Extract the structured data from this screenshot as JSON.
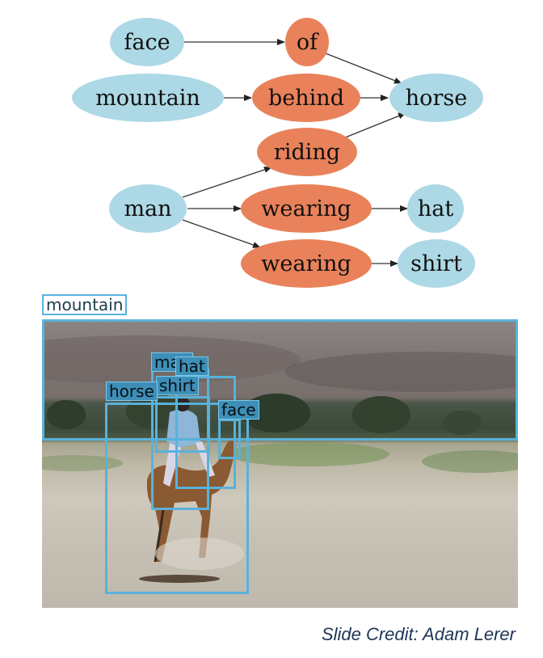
{
  "graph": {
    "nodes": {
      "face": "face",
      "of": "of",
      "mountain": "mountain",
      "behind": "behind",
      "horse": "horse",
      "riding": "riding",
      "man": "man",
      "wearing1": "wearing",
      "hat": "hat",
      "wearing2": "wearing",
      "shirt": "shirt"
    },
    "colors": {
      "object": "#add8e6",
      "relation": "#e9825b",
      "edge": "#333333"
    }
  },
  "detections": {
    "mountain": "mountain",
    "man": "man",
    "hat": "hat",
    "shirt": "shirt",
    "horse": "horse",
    "face": "face"
  },
  "credit": "Slide Credit: Adam Lerer",
  "box_color": "#58b2da"
}
